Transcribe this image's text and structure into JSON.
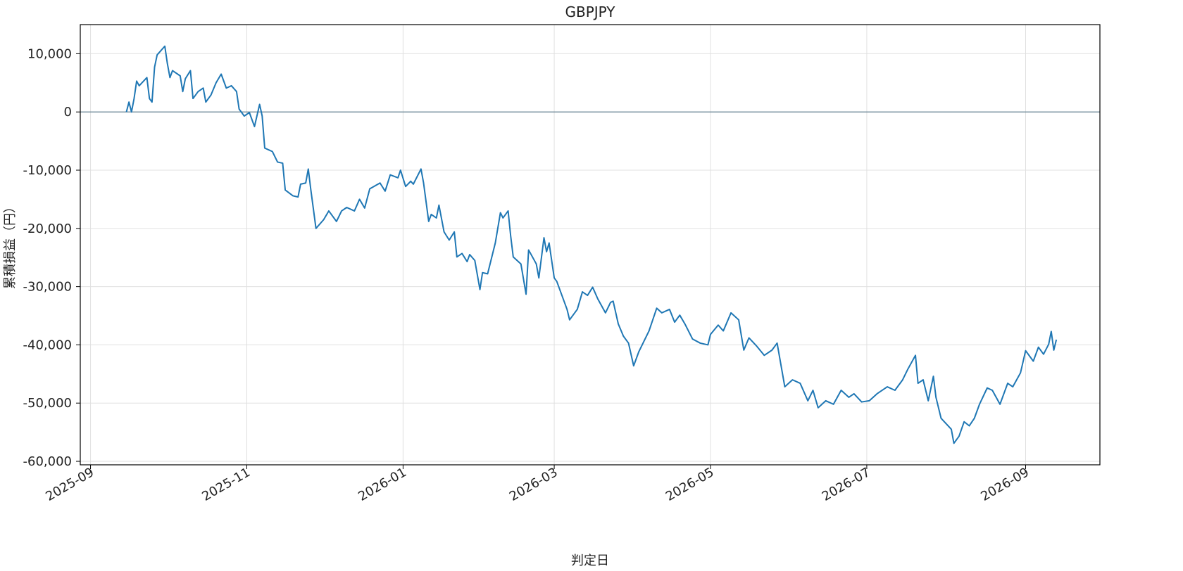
{
  "chart_data": {
    "type": "line",
    "title": "GBPJPY",
    "x_label": "判定日",
    "y_label": "累積損益（円）",
    "xlim": [
      "2025-08-28",
      "2026-09-30"
    ],
    "ylim": [
      -60600,
      15000
    ],
    "xticks": [
      {
        "value": "2025-09-01",
        "label": "2025-09"
      },
      {
        "value": "2025-11-01",
        "label": "2025-11"
      },
      {
        "value": "2026-01-01",
        "label": "2026-01"
      },
      {
        "value": "2026-03-01",
        "label": "2026-03"
      },
      {
        "value": "2026-05-01",
        "label": "2026-05"
      },
      {
        "value": "2026-07-01",
        "label": "2026-07"
      },
      {
        "value": "2026-09-01",
        "label": "2026-09"
      }
    ],
    "yticks": [
      {
        "value": 10000,
        "label": "10,000"
      },
      0,
      {
        "value": -10000,
        "label": "-10,000"
      },
      {
        "value": -20000,
        "label": "-20,000"
      },
      {
        "value": -30000,
        "label": "-30,000"
      },
      {
        "value": -40000,
        "label": "-40,000"
      },
      {
        "value": -50000,
        "label": "-50,000"
      },
      {
        "value": -60000,
        "label": "-60,000"
      }
    ],
    "grid": true,
    "hline": 0,
    "hline_color": "#5a7a8c",
    "x": [
      "2025-09-15",
      "2025-09-16",
      "2025-09-17",
      "2025-09-18",
      "2025-09-19",
      "2025-09-20",
      "2025-09-23",
      "2025-09-24",
      "2025-09-25",
      "2025-09-26",
      "2025-09-27",
      "2025-09-30",
      "2025-10-01",
      "2025-10-02",
      "2025-10-03",
      "2025-10-06",
      "2025-10-07",
      "2025-10-08",
      "2025-10-10",
      "2025-10-11",
      "2025-10-13",
      "2025-10-15",
      "2025-10-16",
      "2025-10-18",
      "2025-10-20",
      "2025-10-22",
      "2025-10-24",
      "2025-10-26",
      "2025-10-28",
      "2025-10-29",
      "2025-10-31",
      "2025-11-02",
      "2025-11-04",
      "2025-11-06",
      "2025-11-07",
      "2025-11-08",
      "2025-11-11",
      "2025-11-13",
      "2025-11-15",
      "2025-11-16",
      "2025-11-19",
      "2025-11-21",
      "2025-11-22",
      "2025-11-24",
      "2025-11-25",
      "2025-11-26",
      "2025-11-28",
      "2025-12-01",
      "2025-12-03",
      "2025-12-06",
      "2025-12-08",
      "2025-12-10",
      "2025-12-13",
      "2025-12-15",
      "2025-12-17",
      "2025-12-19",
      "2025-12-23",
      "2025-12-25",
      "2025-12-27",
      "2025-12-30",
      "2025-12-31",
      "2026-01-02",
      "2026-01-04",
      "2026-01-05",
      "2026-01-08",
      "2026-01-09",
      "2026-01-11",
      "2026-01-12",
      "2026-01-14",
      "2026-01-15",
      "2026-01-17",
      "2026-01-19",
      "2026-01-21",
      "2026-01-22",
      "2026-01-24",
      "2026-01-26",
      "2026-01-27",
      "2026-01-29",
      "2026-01-31",
      "2026-02-01",
      "2026-02-03",
      "2026-02-06",
      "2026-02-08",
      "2026-02-09",
      "2026-02-11",
      "2026-02-12",
      "2026-02-13",
      "2026-02-16",
      "2026-02-18",
      "2026-02-19",
      "2026-02-22",
      "2026-02-23",
      "2026-02-25",
      "2026-02-26",
      "2026-02-27",
      "2026-03-01",
      "2026-03-02",
      "2026-03-04",
      "2026-03-06",
      "2026-03-07",
      "2026-03-10",
      "2026-03-12",
      "2026-03-14",
      "2026-03-16",
      "2026-03-18",
      "2026-03-21",
      "2026-03-23",
      "2026-03-24",
      "2026-03-26",
      "2026-03-28",
      "2026-03-30",
      "2026-04-01",
      "2026-04-03",
      "2026-04-05",
      "2026-04-07",
      "2026-04-10",
      "2026-04-12",
      "2026-04-15",
      "2026-04-17",
      "2026-04-19",
      "2026-04-21",
      "2026-04-24",
      "2026-04-27",
      "2026-04-30",
      "2026-05-01",
      "2026-05-04",
      "2026-05-06",
      "2026-05-09",
      "2026-05-12",
      "2026-05-14",
      "2026-05-16",
      "2026-05-19",
      "2026-05-22",
      "2026-05-25",
      "2026-05-27",
      "2026-05-30",
      "2026-06-02",
      "2026-06-05",
      "2026-06-08",
      "2026-06-10",
      "2026-06-12",
      "2026-06-15",
      "2026-06-18",
      "2026-06-21",
      "2026-06-24",
      "2026-06-26",
      "2026-06-29",
      "2026-07-02",
      "2026-07-05",
      "2026-07-09",
      "2026-07-12",
      "2026-07-15",
      "2026-07-17",
      "2026-07-20",
      "2026-07-21",
      "2026-07-23",
      "2026-07-25",
      "2026-07-27",
      "2026-07-28",
      "2026-07-30",
      "2026-08-03",
      "2026-08-04",
      "2026-08-06",
      "2026-08-08",
      "2026-08-10",
      "2026-08-12",
      "2026-08-14",
      "2026-08-17",
      "2026-08-19",
      "2026-08-22",
      "2026-08-25",
      "2026-08-27",
      "2026-08-30",
      "2026-09-01",
      "2026-09-04",
      "2026-09-06",
      "2026-09-08",
      "2026-09-10",
      "2026-09-11",
      "2026-09-12",
      "2026-09-13"
    ],
    "series": [
      {
        "name": "GBPJPY",
        "color": "#1f77b4",
        "values": [
          0,
          1700,
          0,
          2300,
          5300,
          4500,
          5900,
          2300,
          1700,
          7700,
          9800,
          11300,
          8300,
          5900,
          7100,
          6200,
          3500,
          5700,
          7100,
          2300,
          3500,
          4100,
          1700,
          2900,
          5000,
          6500,
          4100,
          4500,
          3500,
          500,
          -700,
          -100,
          -2500,
          1300,
          -700,
          -6200,
          -6800,
          -8600,
          -8800,
          -13400,
          -14400,
          -14600,
          -12400,
          -12200,
          -9800,
          -13400,
          -20000,
          -18500,
          -17000,
          -18800,
          -17000,
          -16400,
          -17000,
          -15000,
          -16500,
          -13200,
          -12200,
          -13600,
          -10800,
          -11300,
          -10000,
          -12800,
          -11900,
          -12400,
          -9800,
          -12200,
          -18800,
          -17600,
          -18200,
          -16000,
          -20600,
          -22000,
          -20600,
          -24900,
          -24300,
          -25700,
          -24500,
          -25500,
          -30500,
          -27600,
          -27800,
          -22500,
          -17300,
          -18200,
          -17000,
          -21300,
          -24900,
          -26100,
          -31300,
          -23700,
          -26100,
          -28500,
          -21600,
          -24000,
          -22500,
          -28500,
          -29100,
          -31500,
          -33900,
          -35700,
          -33900,
          -30900,
          -31500,
          -30100,
          -32100,
          -34500,
          -32700,
          -32500,
          -36400,
          -38500,
          -39700,
          -43600,
          -41200,
          -39400,
          -37600,
          -33700,
          -34500,
          -33900,
          -36100,
          -34900,
          -36400,
          -39000,
          -39700,
          -40000,
          -38200,
          -36600,
          -37600,
          -34500,
          -35700,
          -40900,
          -38800,
          -40200,
          -41800,
          -40900,
          -39700,
          -47200,
          -46000,
          -46600,
          -49600,
          -47800,
          -50800,
          -49600,
          -50200,
          -47800,
          -49000,
          -48400,
          -49800,
          -49600,
          -48400,
          -47200,
          -47800,
          -46000,
          -44200,
          -41800,
          -46600,
          -46000,
          -49600,
          -45400,
          -49000,
          -52600,
          -54500,
          -56900,
          -55700,
          -53200,
          -53900,
          -52600,
          -50200,
          -47400,
          -47800,
          -50200,
          -46600,
          -47200,
          -44800,
          -41000,
          -42800,
          -40400,
          -41600,
          -39900,
          -37700,
          -40900,
          -39100
        ]
      }
    ]
  }
}
